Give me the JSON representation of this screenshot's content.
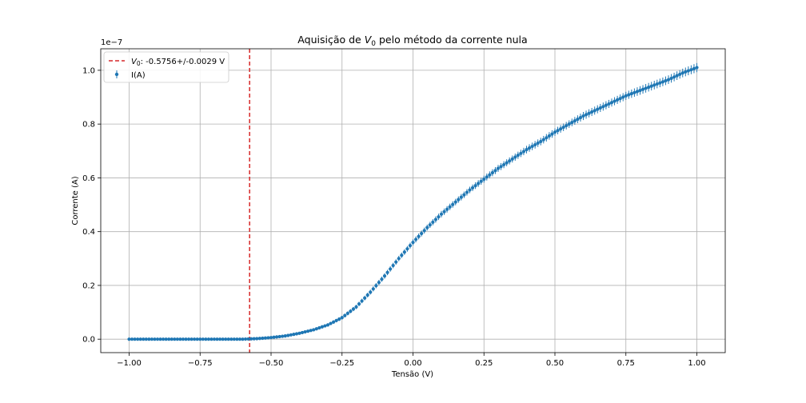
{
  "chart_data": {
    "type": "scatter",
    "title": "Aquisição de V₀ pelo método da corrente nula",
    "title_prefix": "Aquisição de ",
    "title_symbol": "V",
    "title_subscript": "0",
    "title_suffix": " pelo método da corrente nula",
    "xlabel": "Tensão (V)",
    "ylabel": "Corrente (A)",
    "y_multiplier_label": "1e−7",
    "xlim": [
      -1.1,
      1.1
    ],
    "ylim": [
      -0.05,
      1.08
    ],
    "x_ticks": [
      -1.0,
      -0.75,
      -0.5,
      -0.25,
      0.0,
      0.25,
      0.5,
      0.75,
      1.0
    ],
    "x_tick_labels": [
      "−1.00",
      "−0.75",
      "−0.50",
      "−0.25",
      "0.00",
      "0.25",
      "0.50",
      "0.75",
      "1.00"
    ],
    "y_ticks": [
      0.0,
      0.2,
      0.4,
      0.6,
      0.8,
      1.0
    ],
    "y_tick_labels": [
      "0.0",
      "0.2",
      "0.4",
      "0.6",
      "0.8",
      "1.0"
    ],
    "grid": true,
    "legend_position": "top-left",
    "vline": {
      "x": -0.5756,
      "color": "#d62728",
      "style": "dashed",
      "label_symbol": "V",
      "label_subscript": "0",
      "label_text": ": -0.5756+/-0.0029 V"
    },
    "series": [
      {
        "name": "I(A)",
        "color": "#1f77b4",
        "marker": "circle",
        "x": [
          -1.0,
          -0.95,
          -0.9,
          -0.85,
          -0.8,
          -0.75,
          -0.7,
          -0.65,
          -0.6,
          -0.55,
          -0.5,
          -0.45,
          -0.4,
          -0.35,
          -0.3,
          -0.25,
          -0.2,
          -0.15,
          -0.1,
          -0.05,
          0.0,
          0.05,
          0.1,
          0.15,
          0.2,
          0.25,
          0.3,
          0.35,
          0.4,
          0.45,
          0.5,
          0.55,
          0.6,
          0.65,
          0.7,
          0.75,
          0.8,
          0.85,
          0.9,
          0.95,
          1.0
        ],
        "y": [
          0.0,
          0.0,
          0.0,
          0.0,
          0.0,
          0.0,
          0.0,
          0.0,
          0.0,
          0.002,
          0.006,
          0.012,
          0.022,
          0.035,
          0.053,
          0.08,
          0.12,
          0.175,
          0.235,
          0.3,
          0.36,
          0.415,
          0.465,
          0.51,
          0.555,
          0.595,
          0.635,
          0.67,
          0.705,
          0.735,
          0.77,
          0.8,
          0.83,
          0.855,
          0.88,
          0.905,
          0.925,
          0.945,
          0.965,
          0.99,
          1.01
        ],
        "yerr": [
          0.001,
          0.001,
          0.001,
          0.001,
          0.001,
          0.001,
          0.001,
          0.001,
          0.001,
          0.002,
          0.003,
          0.003,
          0.004,
          0.005,
          0.006,
          0.007,
          0.008,
          0.009,
          0.01,
          0.01,
          0.011,
          0.011,
          0.012,
          0.012,
          0.012,
          0.013,
          0.013,
          0.013,
          0.014,
          0.014,
          0.014,
          0.014,
          0.015,
          0.015,
          0.015,
          0.015,
          0.016,
          0.016,
          0.016,
          0.016,
          0.017
        ]
      }
    ]
  }
}
